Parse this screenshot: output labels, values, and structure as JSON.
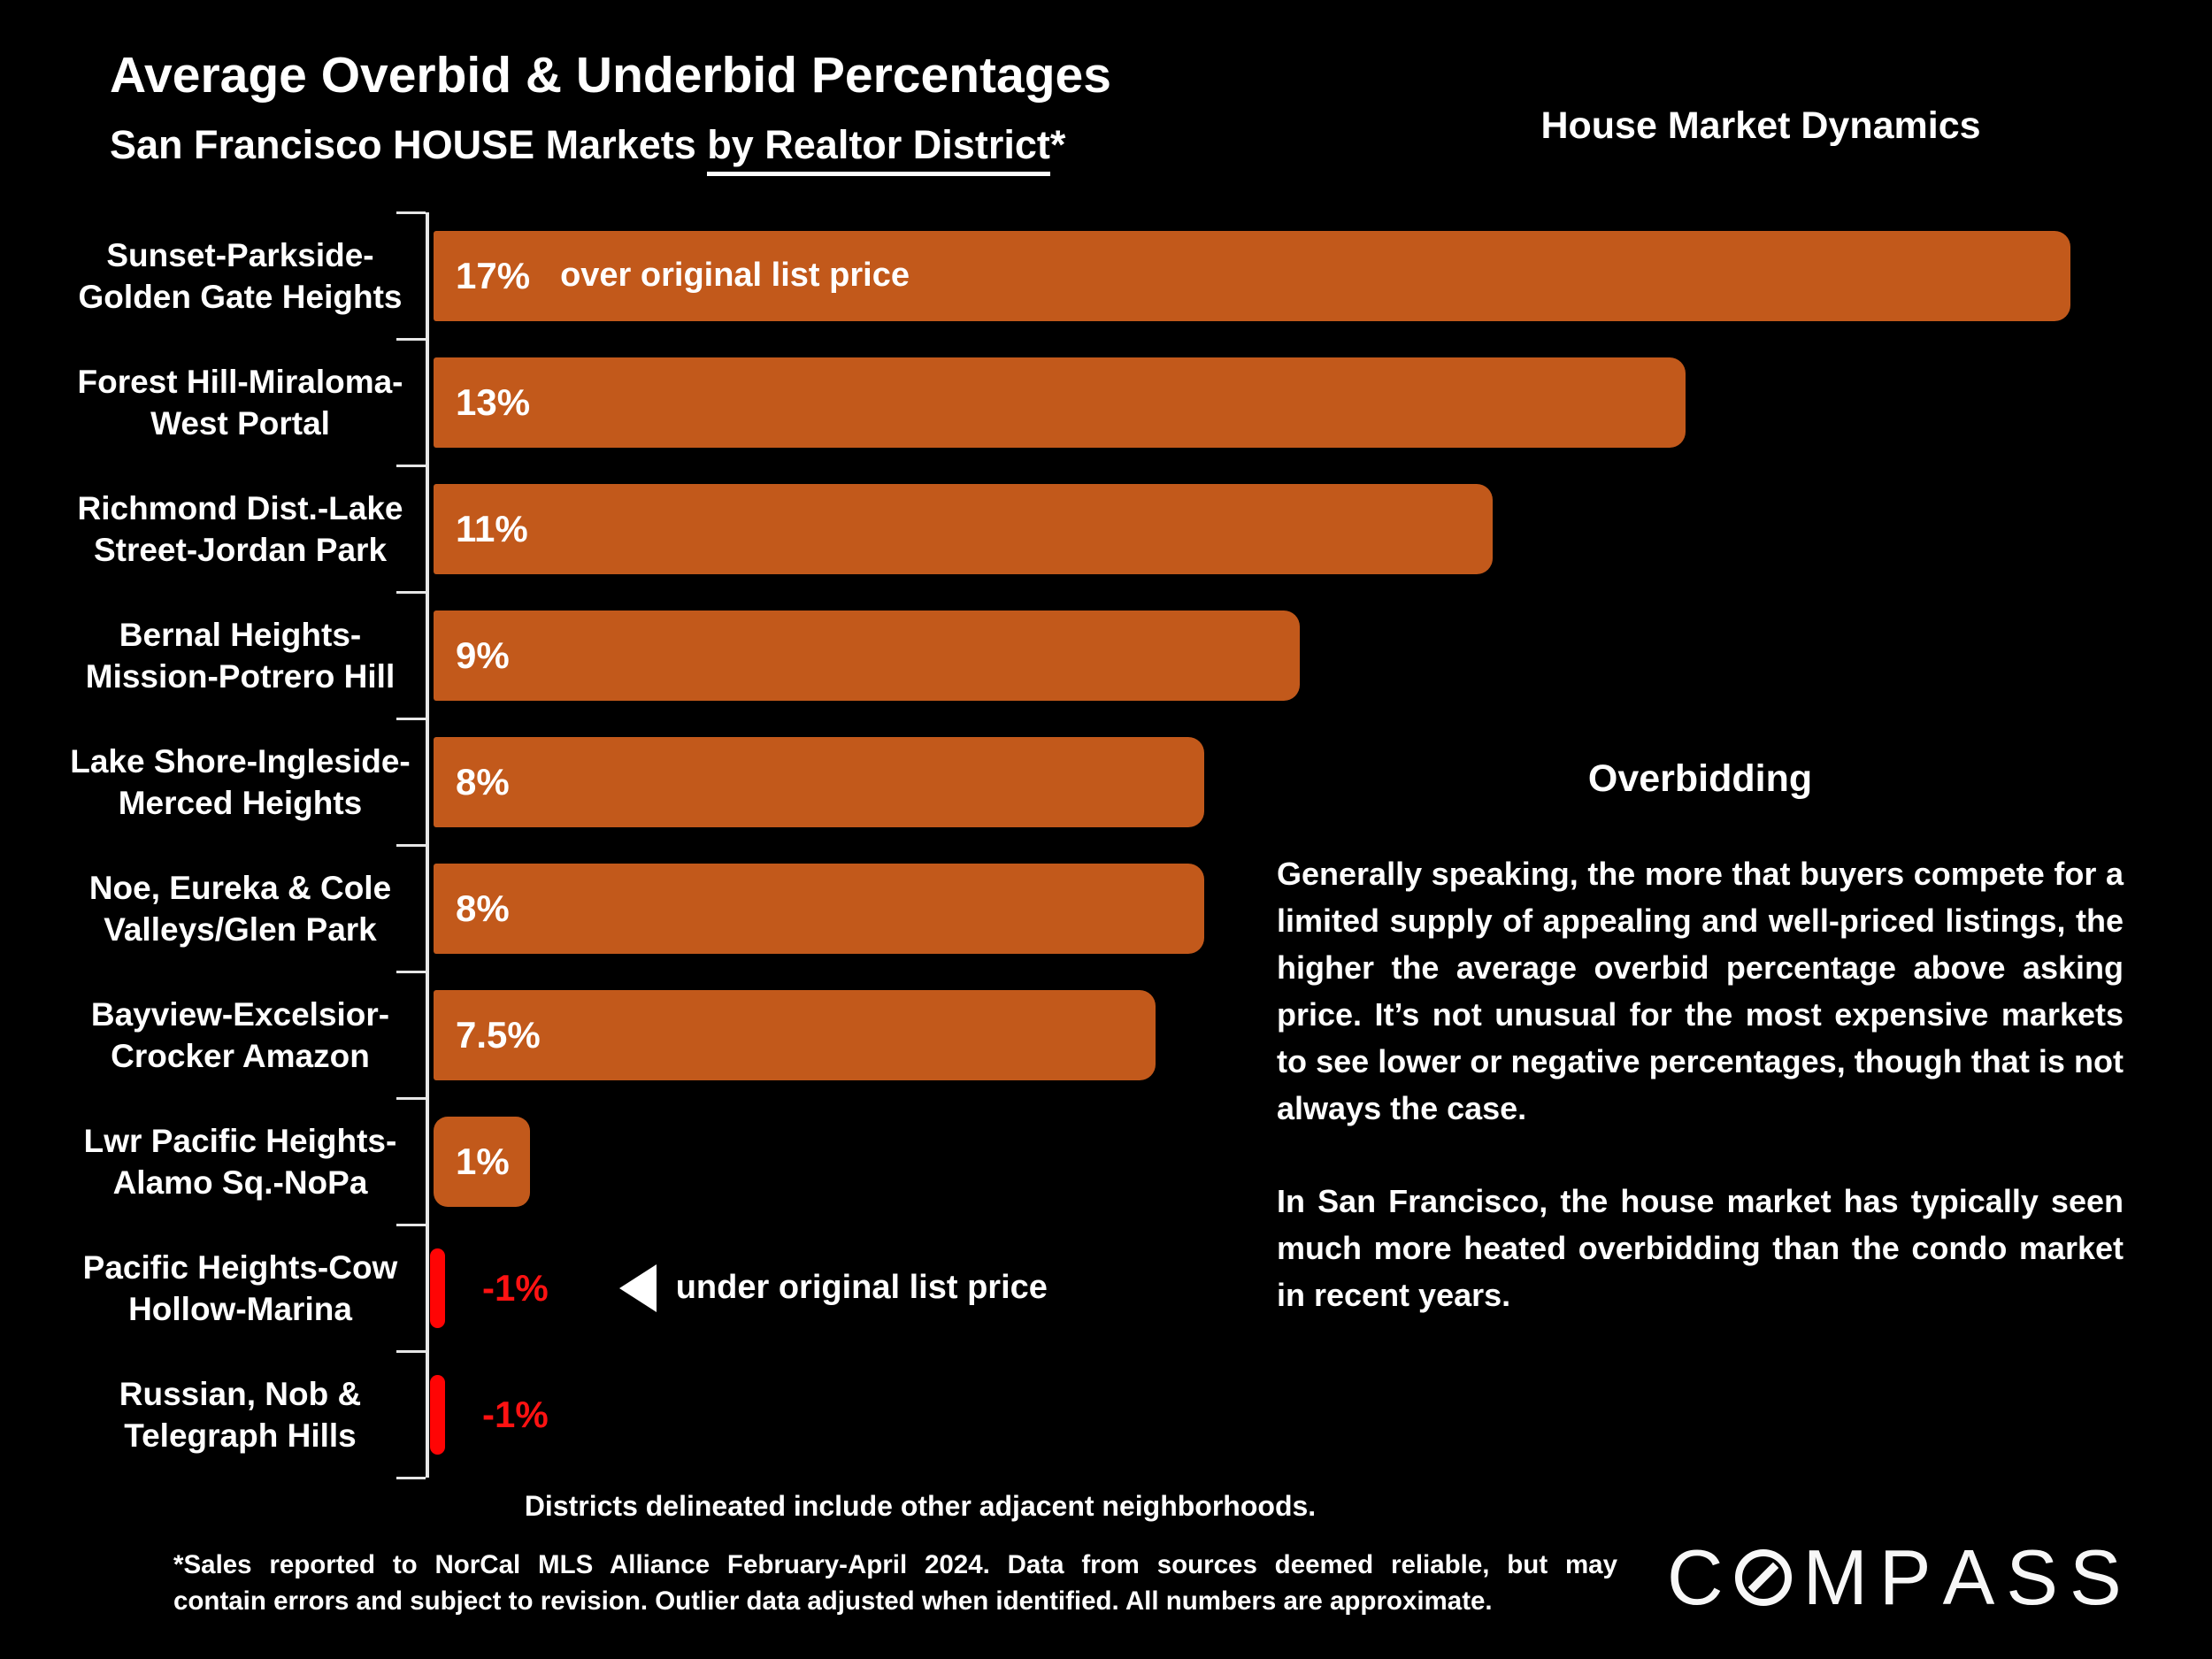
{
  "title": "Average Overbid & Underbid Percentages",
  "subtitle": {
    "prefix": "San Francisco HOUSE Markets ",
    "underlined": "by Realtor District",
    "suffix": "*"
  },
  "header_right": "House Market Dynamics",
  "chart_data": {
    "type": "bar",
    "orientation": "horizontal",
    "unit": "percent over/under original list price",
    "xlim": [
      -1,
      17
    ],
    "grid": false,
    "axis_color": "#E6E6E6",
    "bar_color_positive": "#C2591B",
    "bar_color_negative": "#FF0404",
    "negative_text_color": "#FF1212",
    "categories": [
      [
        "Sunset-Parkside-",
        "Golden Gate Heights"
      ],
      [
        "Forest Hill-Miraloma-",
        "West Portal"
      ],
      [
        "Richmond Dist.-Lake",
        "Street-Jordan Park"
      ],
      [
        "Bernal Heights-",
        "Mission-Potrero Hill"
      ],
      [
        "Lake Shore-Ingleside-",
        "Merced Heights"
      ],
      [
        "Noe, Eureka & Cole",
        "Valleys/Glen Park"
      ],
      [
        "Bayview-Excelsior-",
        "Crocker Amazon"
      ],
      [
        "Lwr Pacific Heights-",
        "Alamo Sq.-NoPa"
      ],
      [
        "Pacific Heights-Cow",
        "Hollow-Marina"
      ],
      [
        "Russian, Nob &",
        "Telegraph Hills"
      ]
    ],
    "values": [
      17,
      13,
      11,
      9,
      8,
      8,
      7.5,
      1,
      -1,
      -1
    ],
    "value_labels": [
      "17%",
      "13%",
      "11%",
      "9%",
      "8%",
      "8%",
      "7.5%",
      "1%",
      "-1%",
      "-1%"
    ],
    "annotations": {
      "over_label": "over original list price",
      "over_row": 0,
      "under_label": "under original list price",
      "under_row": 8
    }
  },
  "side_panel": {
    "heading": "Overbidding",
    "paragraph1": "Generally speaking, the more that buyers compete for a limited supply of appealing and well-priced listings, the higher the average overbid percentage above asking price. It’s not unusual for the most expensive markets to see lower or negative percentages, though that is not always the case.",
    "paragraph2": "In San Francisco, the house market has typically seen much more heated overbidding than the condo market in recent years."
  },
  "footer": {
    "districts_note": "Districts delineated include other adjacent neighborhoods.",
    "footnote_line1": "*Sales reported to NorCal MLS Alliance February-April 2024. Data from sources deemed reliable, but may",
    "footnote_line2": "contain errors and subject to revision. Outlier data adjusted when identified. All numbers are approximate.",
    "brand": "COMPASS"
  }
}
